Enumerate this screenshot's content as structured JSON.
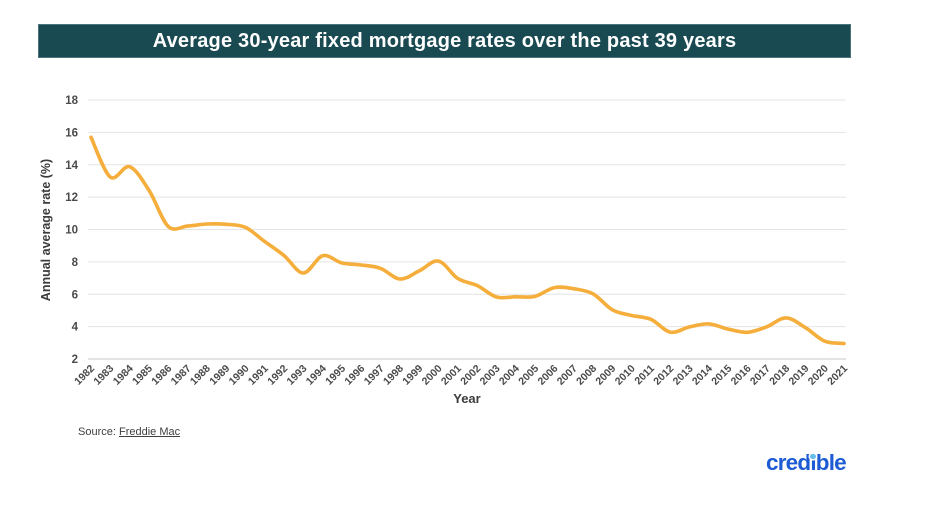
{
  "header": {
    "title": "Average 30-year fixed mortgage rates over the past 39 years",
    "bar_color": "#194a52"
  },
  "chart_data": {
    "type": "line",
    "title": "Average 30-year fixed mortgage rates over the past 39 years",
    "xlabel": "Year",
    "ylabel": "Annual average rate (%)",
    "ylim": [
      2,
      18
    ],
    "yticks": [
      2,
      4,
      6,
      8,
      10,
      12,
      14,
      16,
      18
    ],
    "grid": true,
    "legend": "none",
    "line_color": "#F5AE3B",
    "x": [
      1982,
      1983,
      1984,
      1985,
      1986,
      1987,
      1988,
      1989,
      1990,
      1991,
      1992,
      1993,
      1994,
      1995,
      1996,
      1997,
      1998,
      1999,
      2000,
      2001,
      2002,
      2003,
      2004,
      2005,
      2006,
      2007,
      2008,
      2009,
      2010,
      2011,
      2012,
      2013,
      2014,
      2015,
      2016,
      2017,
      2018,
      2019,
      2020,
      2021
    ],
    "values": [
      15.7,
      13.24,
      13.88,
      12.43,
      10.19,
      10.21,
      10.34,
      10.32,
      10.13,
      9.25,
      8.39,
      7.31,
      8.38,
      7.93,
      7.81,
      7.6,
      6.94,
      7.44,
      8.05,
      6.97,
      6.54,
      5.83,
      5.84,
      5.87,
      6.41,
      6.34,
      6.03,
      5.04,
      4.69,
      4.45,
      3.66,
      3.98,
      4.17,
      3.85,
      3.65,
      3.99,
      4.54,
      3.94,
      3.1,
      2.96
    ]
  },
  "footer": {
    "source_label": "Source:",
    "source_link": "Freddie Mac",
    "logo_text": "credible",
    "logo_color": "#1C5BD4",
    "logo_dot_color": "#66BFE8"
  }
}
